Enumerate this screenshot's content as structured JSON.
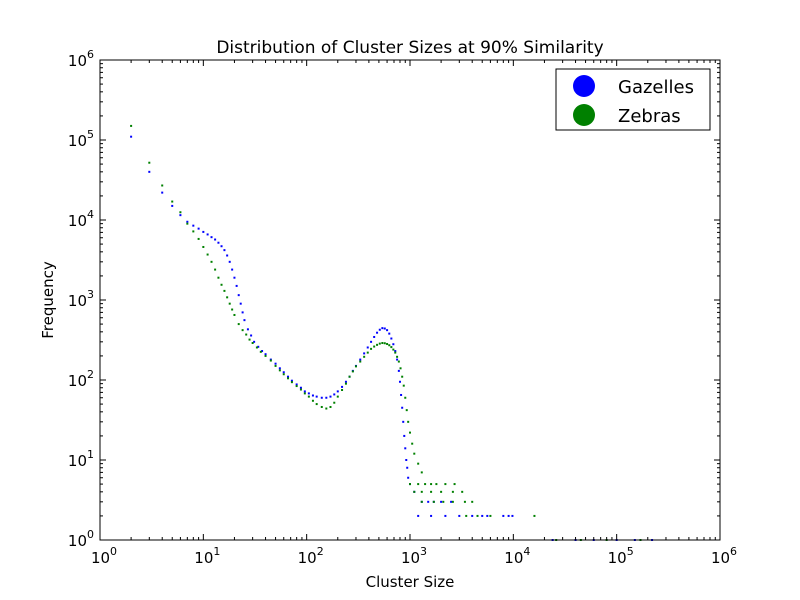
{
  "chart_data": {
    "type": "scatter",
    "title": "Distribution of Cluster Sizes at 90% Similarity",
    "xlabel": "Cluster Size",
    "ylabel": "Frequency",
    "xscale": "log",
    "yscale": "log",
    "xlim": [
      1,
      1000000
    ],
    "ylim": [
      1,
      1000000
    ],
    "x_ticks": [
      {
        "base": "10",
        "exp": "0"
      },
      {
        "base": "10",
        "exp": "1"
      },
      {
        "base": "10",
        "exp": "2"
      },
      {
        "base": "10",
        "exp": "3"
      },
      {
        "base": "10",
        "exp": "4"
      },
      {
        "base": "10",
        "exp": "5"
      },
      {
        "base": "10",
        "exp": "6"
      }
    ],
    "y_ticks": [
      {
        "base": "10",
        "exp": "0"
      },
      {
        "base": "10",
        "exp": "1"
      },
      {
        "base": "10",
        "exp": "2"
      },
      {
        "base": "10",
        "exp": "3"
      },
      {
        "base": "10",
        "exp": "4"
      },
      {
        "base": "10",
        "exp": "5"
      },
      {
        "base": "10",
        "exp": "6"
      }
    ],
    "grid": false,
    "legend": "top-right",
    "series": [
      {
        "name": "Gazelles",
        "color": "#0000ff",
        "points": [
          [
            2,
            110000
          ],
          [
            3,
            40000
          ],
          [
            4,
            22000
          ],
          [
            5,
            15000
          ],
          [
            6,
            11500
          ],
          [
            7,
            9500
          ],
          [
            8,
            8500
          ],
          [
            9,
            7800
          ],
          [
            10,
            7100
          ],
          [
            11,
            6600
          ],
          [
            12,
            6100
          ],
          [
            13,
            5700
          ],
          [
            14,
            5200
          ],
          [
            15,
            4700
          ],
          [
            16,
            4200
          ],
          [
            17,
            3600
          ],
          [
            18,
            3000
          ],
          [
            19,
            2400
          ],
          [
            20,
            1900
          ],
          [
            21,
            1500
          ],
          [
            22,
            1150
          ],
          [
            23,
            900
          ],
          [
            24,
            700
          ],
          [
            25,
            560
          ],
          [
            27,
            430
          ],
          [
            29,
            360
          ],
          [
            31,
            300
          ],
          [
            34,
            260
          ],
          [
            37,
            230
          ],
          [
            40,
            210
          ],
          [
            45,
            180
          ],
          [
            50,
            160
          ],
          [
            55,
            140
          ],
          [
            60,
            125
          ],
          [
            66,
            110
          ],
          [
            72,
            98
          ],
          [
            80,
            88
          ],
          [
            88,
            80
          ],
          [
            96,
            72
          ],
          [
            105,
            68
          ],
          [
            115,
            64
          ],
          [
            125,
            62
          ],
          [
            140,
            60
          ],
          [
            155,
            60
          ],
          [
            170,
            62
          ],
          [
            185,
            66
          ],
          [
            200,
            72
          ],
          [
            220,
            82
          ],
          [
            240,
            95
          ],
          [
            260,
            110
          ],
          [
            280,
            130
          ],
          [
            300,
            150
          ],
          [
            330,
            180
          ],
          [
            360,
            215
          ],
          [
            390,
            255
          ],
          [
            420,
            300
          ],
          [
            450,
            345
          ],
          [
            480,
            390
          ],
          [
            510,
            425
          ],
          [
            540,
            445
          ],
          [
            570,
            440
          ],
          [
            600,
            420
          ],
          [
            630,
            380
          ],
          [
            660,
            330
          ],
          [
            690,
            280
          ],
          [
            720,
            230
          ],
          [
            750,
            180
          ],
          [
            780,
            130
          ],
          [
            800,
            95
          ],
          [
            820,
            65
          ],
          [
            840,
            45
          ],
          [
            860,
            30
          ],
          [
            880,
            20
          ],
          [
            900,
            14
          ],
          [
            920,
            10
          ],
          [
            940,
            8
          ],
          [
            960,
            6
          ],
          [
            1000,
            5
          ],
          [
            1100,
            4
          ],
          [
            1300,
            3
          ],
          [
            1500,
            3
          ],
          [
            1700,
            3
          ],
          [
            2000,
            3
          ],
          [
            2500,
            3
          ],
          [
            1200,
            2
          ],
          [
            1600,
            2
          ],
          [
            2200,
            2
          ],
          [
            3000,
            2
          ],
          [
            4000,
            2
          ],
          [
            5000,
            2
          ],
          [
            5600,
            2
          ],
          [
            8000,
            2
          ],
          [
            9000,
            2
          ],
          [
            9800,
            2
          ],
          [
            24000,
            1
          ],
          [
            40000,
            1
          ],
          [
            60000,
            1
          ],
          [
            100000,
            1
          ],
          [
            150000,
            1
          ],
          [
            220000,
            1
          ]
        ]
      },
      {
        "name": "Zebras",
        "color": "#008000",
        "points": [
          [
            2,
            150000
          ],
          [
            3,
            52000
          ],
          [
            4,
            27000
          ],
          [
            5,
            17000
          ],
          [
            6,
            12500
          ],
          [
            7,
            9000
          ],
          [
            8,
            7200
          ],
          [
            9,
            5800
          ],
          [
            10,
            4600
          ],
          [
            11,
            3700
          ],
          [
            12,
            3000
          ],
          [
            13,
            2400
          ],
          [
            14,
            1900
          ],
          [
            15,
            1550
          ],
          [
            16,
            1300
          ],
          [
            17,
            1080
          ],
          [
            18,
            900
          ],
          [
            19,
            760
          ],
          [
            20,
            650
          ],
          [
            22,
            500
          ],
          [
            24,
            420
          ],
          [
            26,
            370
          ],
          [
            28,
            320
          ],
          [
            30,
            290
          ],
          [
            33,
            255
          ],
          [
            36,
            225
          ],
          [
            40,
            200
          ],
          [
            45,
            175
          ],
          [
            50,
            150
          ],
          [
            55,
            132
          ],
          [
            60,
            118
          ],
          [
            66,
            105
          ],
          [
            72,
            94
          ],
          [
            80,
            84
          ],
          [
            88,
            76
          ],
          [
            96,
            68
          ],
          [
            105,
            62
          ],
          [
            115,
            55
          ],
          [
            125,
            50
          ],
          [
            140,
            46
          ],
          [
            155,
            44
          ],
          [
            170,
            46
          ],
          [
            185,
            52
          ],
          [
            200,
            62
          ],
          [
            220,
            75
          ],
          [
            240,
            90
          ],
          [
            260,
            110
          ],
          [
            280,
            128
          ],
          [
            300,
            148
          ],
          [
            330,
            170
          ],
          [
            360,
            195
          ],
          [
            390,
            220
          ],
          [
            420,
            245
          ],
          [
            450,
            262
          ],
          [
            480,
            275
          ],
          [
            510,
            285
          ],
          [
            540,
            290
          ],
          [
            570,
            288
          ],
          [
            600,
            282
          ],
          [
            630,
            272
          ],
          [
            660,
            258
          ],
          [
            690,
            240
          ],
          [
            720,
            220
          ],
          [
            750,
            195
          ],
          [
            780,
            170
          ],
          [
            810,
            140
          ],
          [
            840,
            110
          ],
          [
            870,
            85
          ],
          [
            900,
            60
          ],
          [
            930,
            42
          ],
          [
            960,
            30
          ],
          [
            1000,
            22
          ],
          [
            1050,
            16
          ],
          [
            1100,
            12
          ],
          [
            1200,
            9
          ],
          [
            1300,
            7
          ],
          [
            1000,
            5
          ],
          [
            1200,
            5
          ],
          [
            1400,
            5
          ],
          [
            1600,
            5
          ],
          [
            1800,
            5
          ],
          [
            2200,
            5
          ],
          [
            2700,
            5
          ],
          [
            1100,
            4
          ],
          [
            1300,
            4
          ],
          [
            1600,
            4
          ],
          [
            2000,
            4
          ],
          [
            2600,
            4
          ],
          [
            3200,
            4
          ],
          [
            1300,
            3
          ],
          [
            1700,
            3
          ],
          [
            2100,
            3
          ],
          [
            2600,
            3
          ],
          [
            3400,
            3
          ],
          [
            4000,
            3
          ],
          [
            3500,
            2
          ],
          [
            4500,
            2
          ],
          [
            6000,
            2
          ],
          [
            16000,
            2
          ],
          [
            26000,
            1
          ],
          [
            45000,
            1
          ],
          [
            80000,
            1
          ],
          [
            170000,
            1
          ]
        ]
      }
    ]
  }
}
